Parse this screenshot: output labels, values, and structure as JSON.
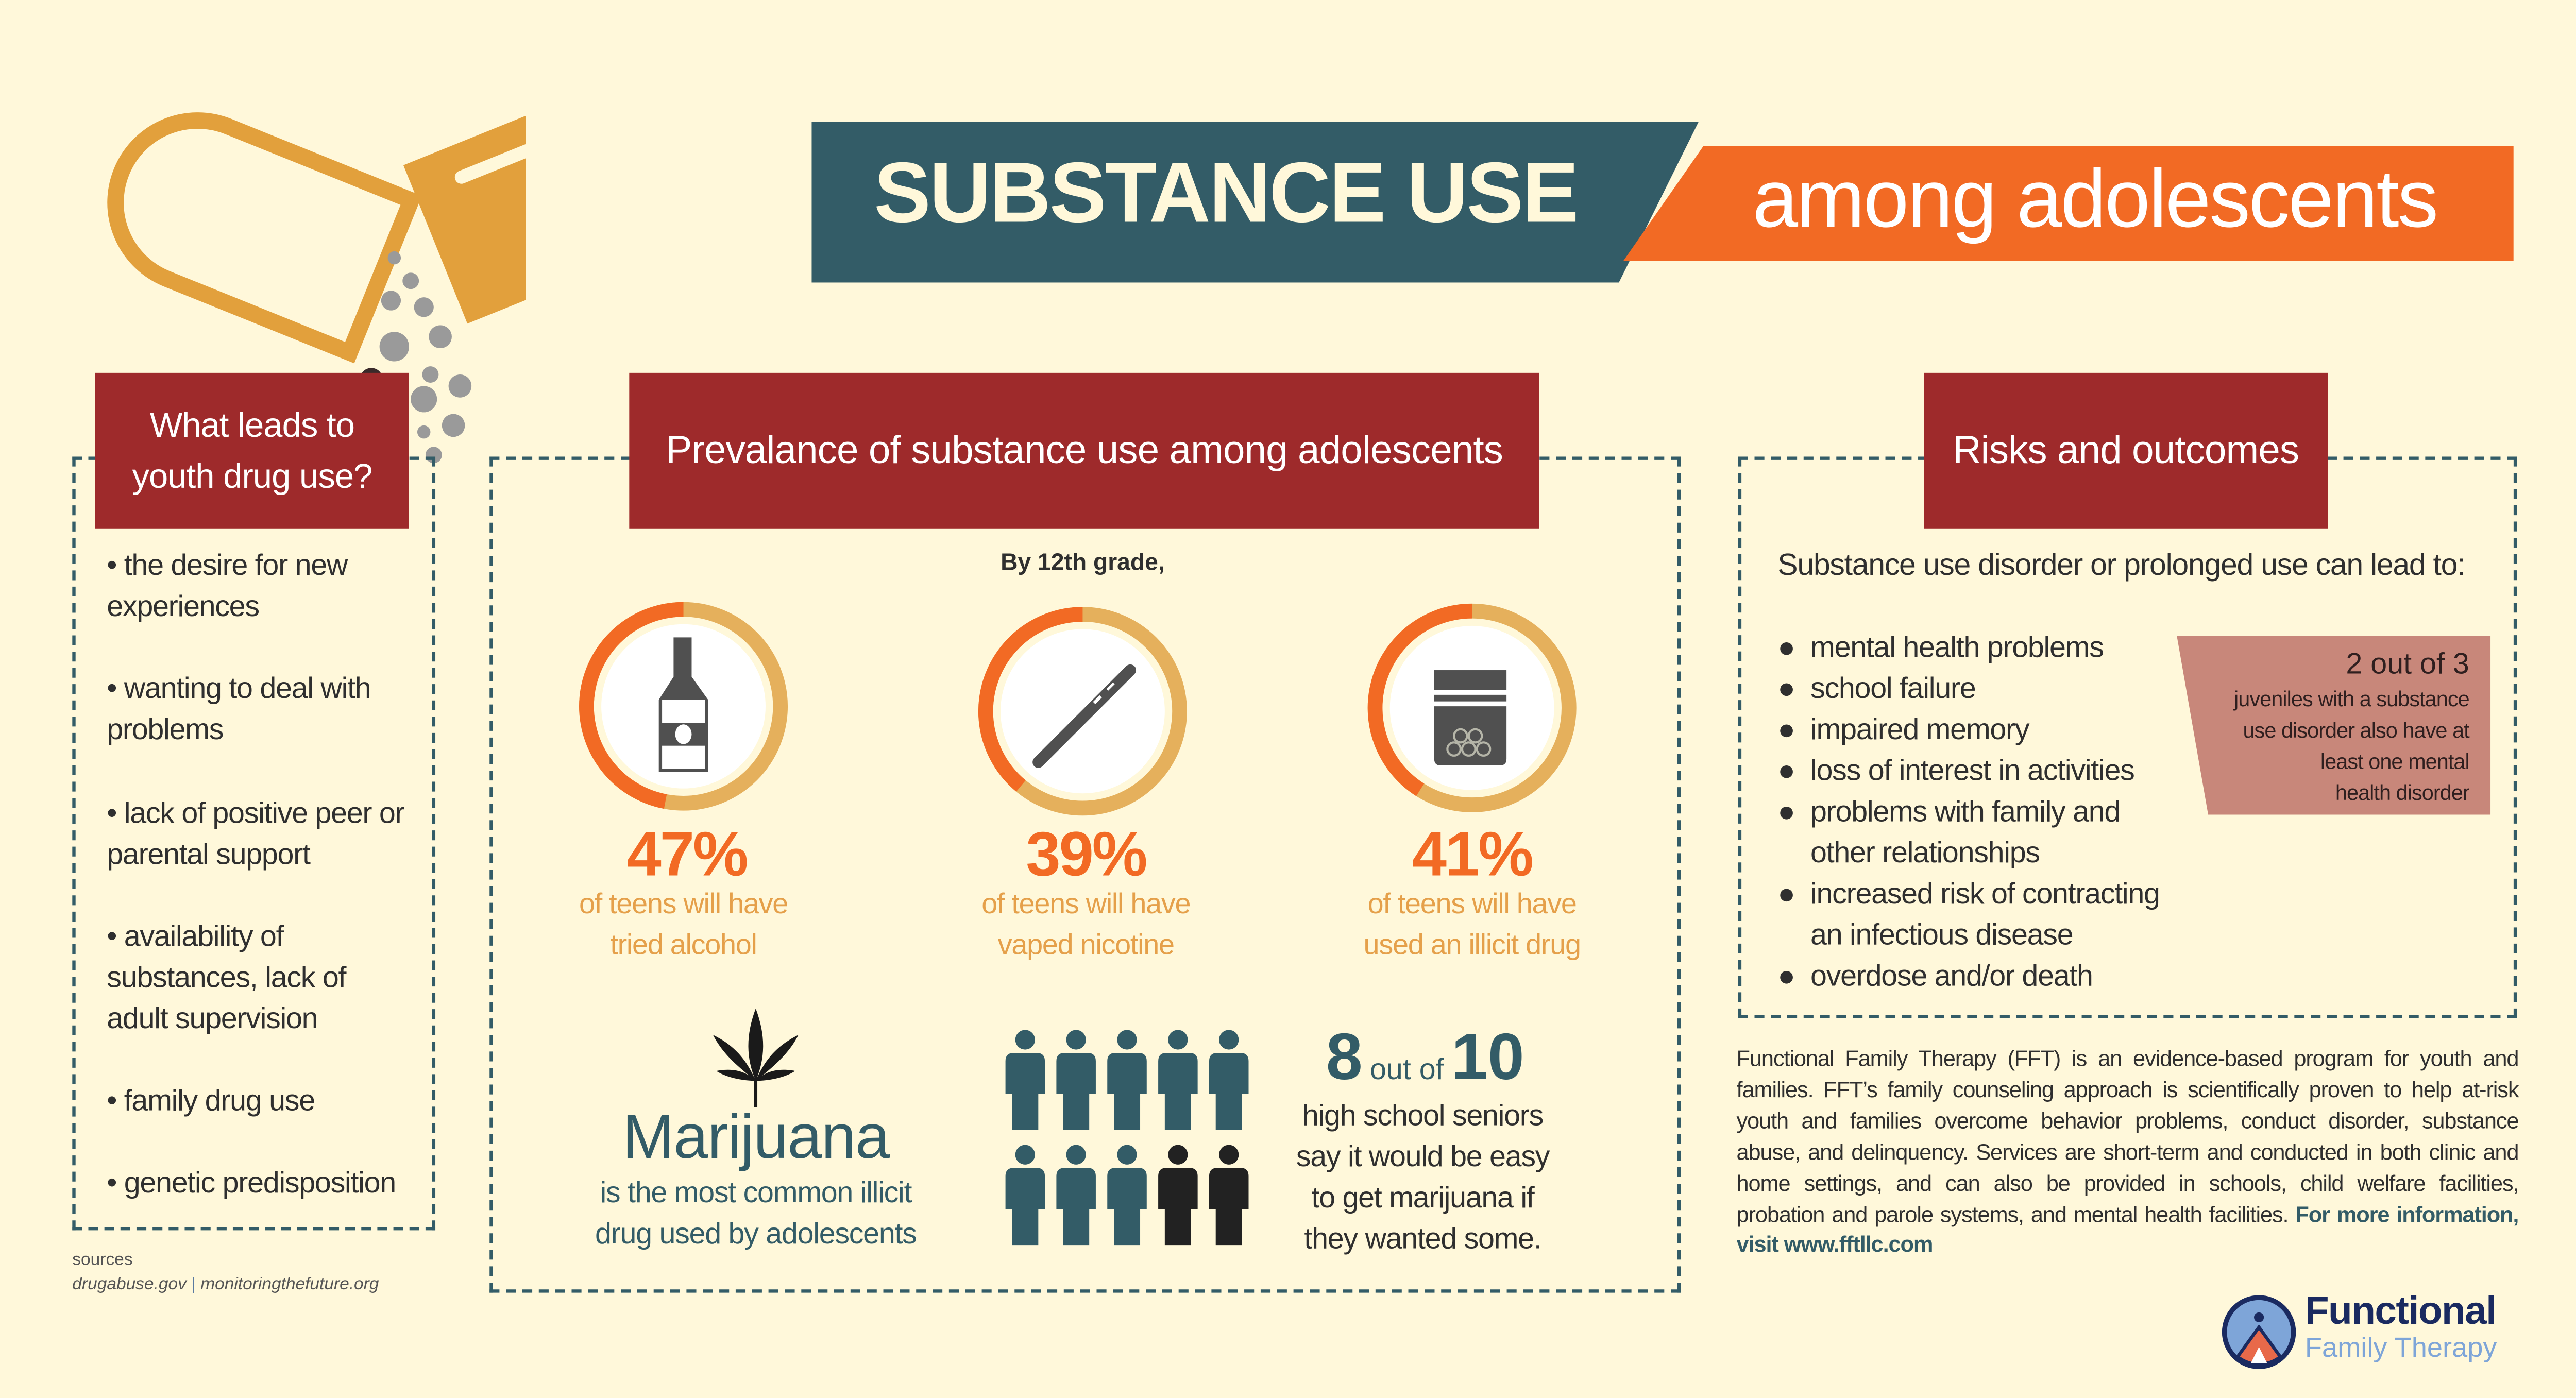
{
  "colors": {
    "teal": "#335c67",
    "orange": "#f26a24",
    "red": "#9e2a2b",
    "gold": "#e2a03c",
    "ring_rest": "#e5b05c",
    "pink": "#c8877a",
    "background": "#fff8da"
  },
  "header": {
    "title": "SUBSTANCE USE",
    "subtitle": "among adolescents",
    "decoration": "open-capsule-pill-icon"
  },
  "causes": {
    "title_line1": "What leads to",
    "title_line2": "youth drug use?",
    "items": [
      {
        "l1": "• the desire for new",
        "l2": "experiences"
      },
      {
        "l1": "• wanting to deal with",
        "l2": "problems"
      },
      {
        "l1": "• lack of positive peer or",
        "l2": "parental support"
      },
      {
        "l1": "• availability of",
        "l2": "substances, lack of",
        "l3": "adult supervision"
      },
      {
        "l1": "• family drug use"
      },
      {
        "l1": "• genetic predisposition"
      }
    ]
  },
  "sources": {
    "label": "sources",
    "site1": "drugabuse.gov",
    "separator": "|",
    "site2": "monitoringthefuture.org"
  },
  "prevalence": {
    "title": "Prevalance of substance use among adolescents",
    "intro": "By 12th grade,",
    "stats": [
      {
        "percent": 47,
        "label": "47%",
        "line1": "of teens will have",
        "line2": "tried alcohol",
        "icon": "liquor-bottle-icon"
      },
      {
        "percent": 39,
        "label": "39%",
        "line1": "of teens will have",
        "line2": "vaped nicotine",
        "icon": "vape-pen-icon"
      },
      {
        "percent": 41,
        "label": "41%",
        "line1": "of teens will have",
        "line2": "used an illicit drug",
        "icon": "pill-bag-icon"
      }
    ],
    "marijuana": {
      "title": "Marijuana",
      "line1": "is the most common illicit",
      "line2": "drug used by adolescents",
      "icon": "cannabis-leaf-icon"
    },
    "seniors": {
      "count": "8",
      "mid": "out of",
      "total": "10",
      "highlighted": 8,
      "people": 10,
      "line1": "high school seniors",
      "line2": "say it would be easy",
      "line3": "to get marijuana if",
      "line4": "they wanted some."
    }
  },
  "risks": {
    "title": "Risks and outcomes",
    "intro": "Substance use disorder or prolonged use can lead to:",
    "items": [
      {
        "l1": "mental health problems"
      },
      {
        "l1": "school failure"
      },
      {
        "l1": "impaired memory"
      },
      {
        "l1": "loss of interest in activities"
      },
      {
        "l1": "problems with family and",
        "l2": "other relationships"
      },
      {
        "l1": "increased risk of contracting",
        "l2": "an infectious disease"
      },
      {
        "l1": "overdose and/or death"
      }
    ],
    "callout": {
      "headline": "2 out of 3",
      "l1": "juveniles with a substance",
      "l2": "use disorder also have at",
      "l3": "least one mental",
      "l4": "health disorder"
    }
  },
  "about": {
    "text": "Functional Family Therapy (FFT) is an evidence-based program for youth and families. FFT’s family counseling approach is scientifically proven to help at-risk youth and families overcome behavior problems, conduct disorder, substance abuse, and delinquency. Services are short-term and conducted in both clinic and home settings, and can also be provided in schools, child welfare facilities, probation and parole systems, and mental health facilities.",
    "cta": "For more information, visit www.fftllc.com"
  },
  "logo": {
    "line1": "Functional",
    "line2": "Family Therapy"
  }
}
